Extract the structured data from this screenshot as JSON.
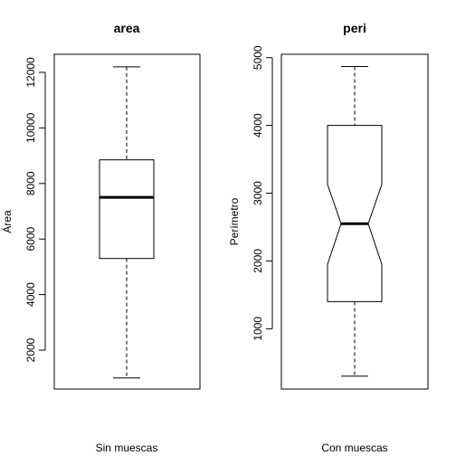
{
  "chart_data": [
    {
      "type": "boxplot",
      "title": "area",
      "ylabel": "Área",
      "xlabel": "Sin muescas",
      "notch": false,
      "ylim": [
        600,
        12650
      ],
      "yticks": [
        2000,
        4000,
        6000,
        8000,
        10000,
        12000
      ],
      "stats": {
        "min": 1000,
        "q1": 5300,
        "median": 7500,
        "q3": 8850,
        "max": 12200
      }
    },
    {
      "type": "boxplot",
      "title": "peri",
      "ylabel": "Perímetro",
      "xlabel": "Con muescas",
      "notch": true,
      "ylim": [
        110,
        5050
      ],
      "yticks": [
        1000,
        2000,
        3000,
        4000,
        5000
      ],
      "stats": {
        "min": 300,
        "q1": 1400,
        "median": 2550,
        "q3": 4000,
        "max": 4870,
        "notch_low": 1950,
        "notch_high": 3130
      }
    }
  ]
}
